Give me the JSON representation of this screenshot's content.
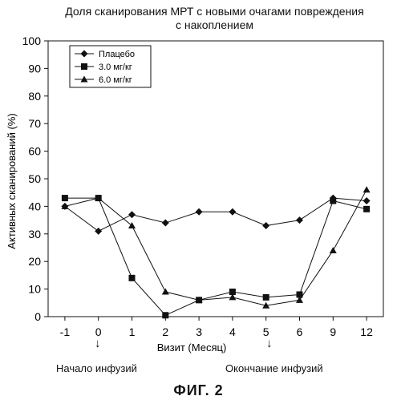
{
  "title_lines": [
    "Доля сканирования МРТ с новыми очагами повреждения",
    "с накоплением"
  ],
  "figure_caption": "ФИГ. 2",
  "annotations": {
    "start": "Начало инфузий",
    "end": "Окончание инфузий"
  },
  "chart_data": {
    "type": "line",
    "title": "Доля сканирования МРТ с новыми очагами повреждения с накоплением",
    "xlabel": "Визит (Месяц)",
    "ylabel": "Активных сканирований (%)",
    "categories": [
      "-1",
      "0",
      "1",
      "2",
      "3",
      "4",
      "5",
      "6",
      "9",
      "12"
    ],
    "ylim": [
      0,
      100
    ],
    "yticks": [
      0,
      10,
      20,
      30,
      40,
      50,
      60,
      70,
      80,
      90,
      100
    ],
    "grid": false,
    "legend_position": "top-left",
    "series": [
      {
        "name": "Плацебо",
        "marker": "diamond",
        "values": [
          40,
          31,
          37,
          34,
          38,
          38,
          33,
          35,
          43,
          42
        ]
      },
      {
        "name": "3.0 мг/кг",
        "marker": "square",
        "values": [
          43,
          43,
          14,
          0.5,
          6,
          9,
          7,
          8,
          42,
          39
        ]
      },
      {
        "name": "6.0 мг/кг",
        "marker": "triangle",
        "values": [
          40,
          43,
          33,
          9,
          6,
          7,
          4,
          6,
          24,
          46
        ]
      }
    ]
  }
}
